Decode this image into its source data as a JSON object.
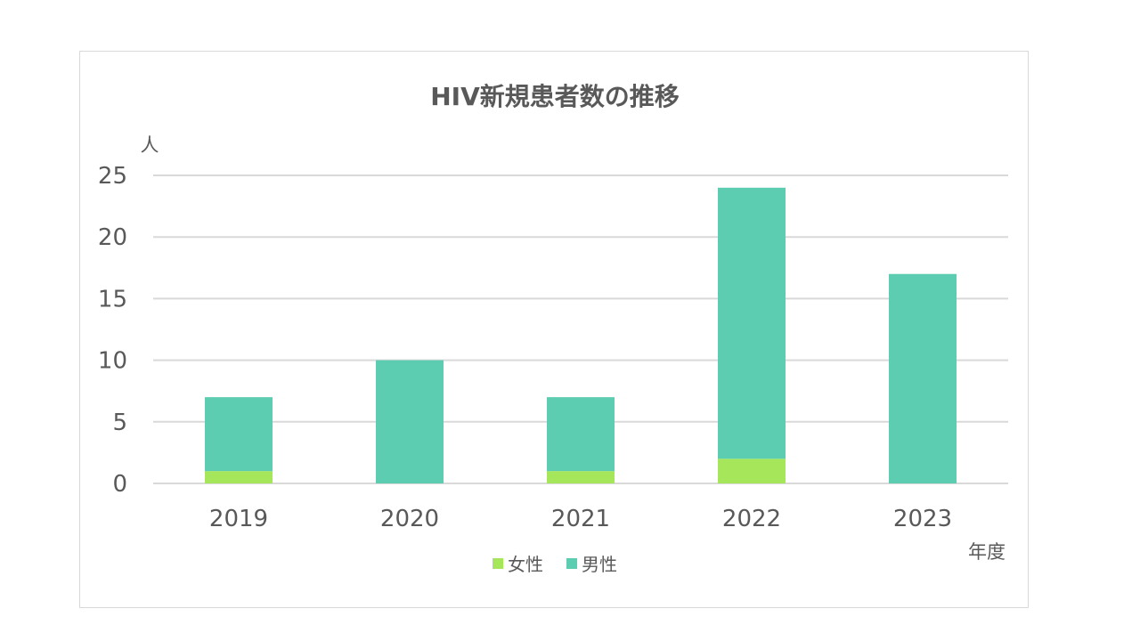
{
  "colors": {
    "female": "#a6e65a",
    "male": "#5ccdb0",
    "grid": "#d9d9d9",
    "text": "#595959",
    "frame": "#d9d9d9"
  },
  "chart_data": {
    "type": "bar",
    "stacked": true,
    "title": "HIV新規患者数の推移",
    "ylabel": "人",
    "xlabel": "年度",
    "categories": [
      "2019",
      "2020",
      "2021",
      "2022",
      "2023"
    ],
    "series": [
      {
        "name": "女性",
        "values": [
          1,
          0,
          1,
          2,
          0
        ]
      },
      {
        "name": "男性",
        "values": [
          6,
          10,
          6,
          22,
          17
        ]
      }
    ],
    "ylim": [
      0,
      25
    ],
    "yticks": [
      "0",
      "5",
      "10",
      "15",
      "20",
      "25"
    ],
    "grid": true,
    "legend": "bottom"
  }
}
